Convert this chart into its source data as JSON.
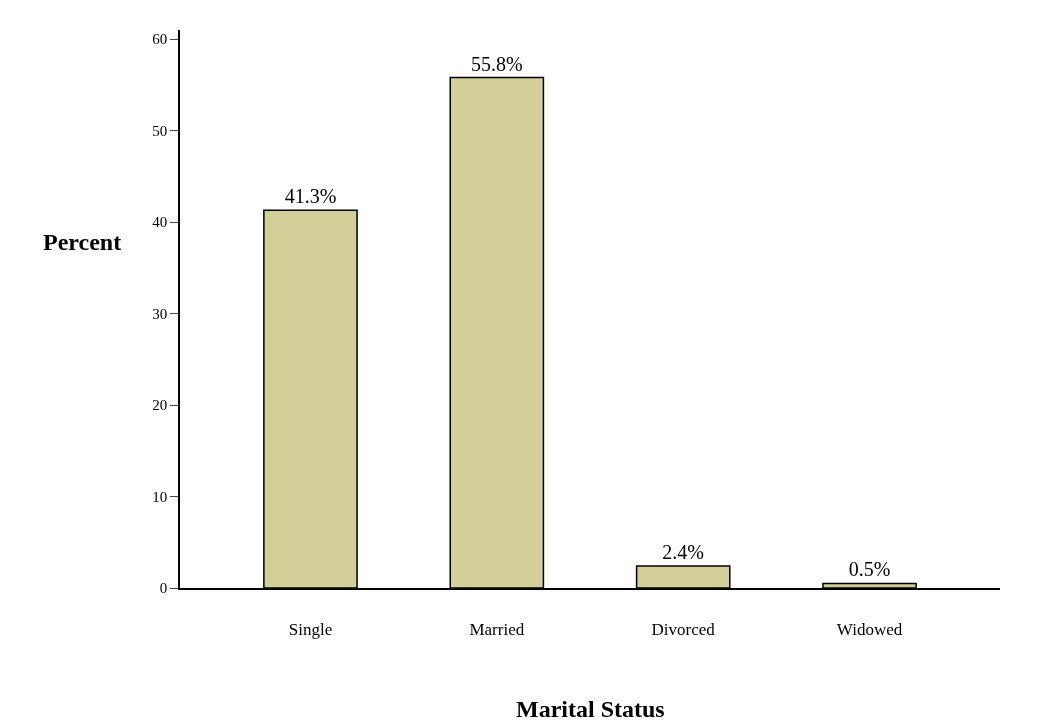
{
  "chart_data": {
    "type": "bar",
    "xlabel": "Marital Status",
    "ylabel": "Percent",
    "categories": [
      "Single",
      "Married",
      "Divorced",
      "Widowed"
    ],
    "values": [
      41.3,
      55.8,
      2.4,
      0.5
    ],
    "value_labels": [
      "41.3%",
      "55.8%",
      "2.4%",
      "0.5%"
    ],
    "color": "#d3cf98",
    "ylim": [
      0,
      61
    ],
    "yticks": [
      0,
      10,
      20,
      30,
      40,
      50,
      60
    ]
  }
}
